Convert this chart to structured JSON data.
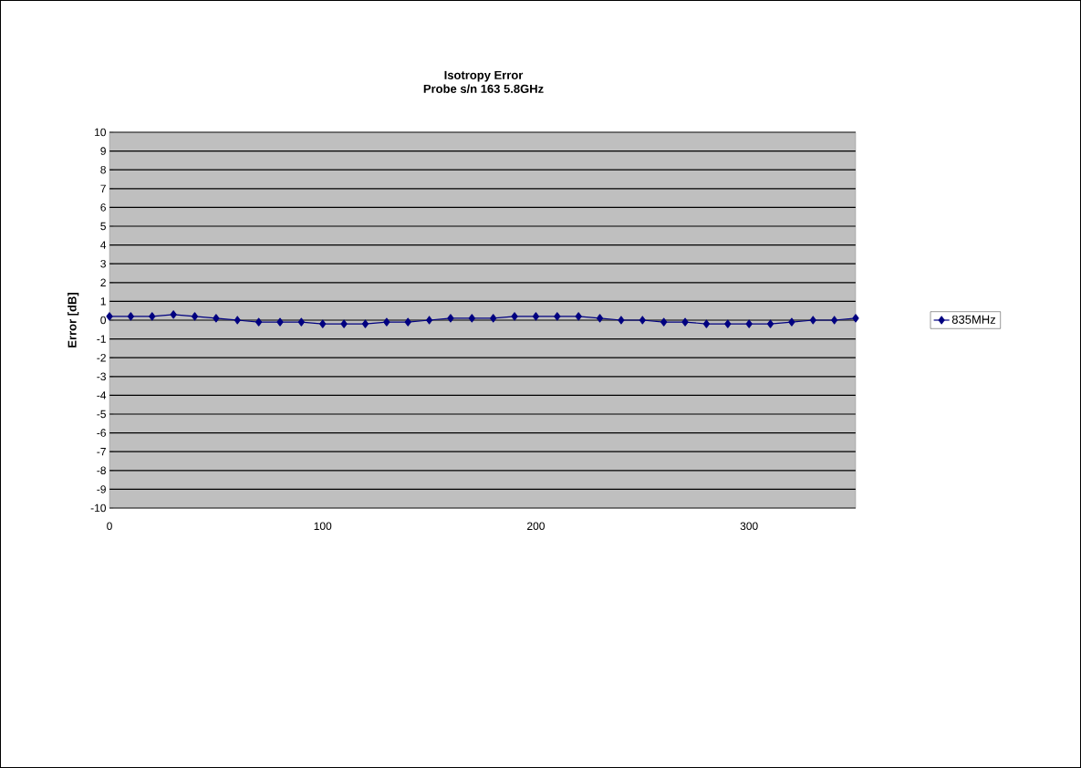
{
  "chart_data": {
    "type": "line",
    "title": "Isotropy Error",
    "subtitle": "Probe s/n 163 5.8GHz",
    "ylabel": "Error [dB]",
    "x": [
      0,
      10,
      20,
      30,
      40,
      50,
      60,
      70,
      80,
      90,
      100,
      110,
      120,
      130,
      140,
      150,
      160,
      170,
      180,
      190,
      200,
      210,
      220,
      230,
      240,
      250,
      260,
      270,
      280,
      290,
      300,
      310,
      320,
      330,
      340,
      350
    ],
    "series": [
      {
        "name": "835MHz",
        "color": "#000080",
        "values": [
          0.2,
          0.2,
          0.2,
          0.3,
          0.2,
          0.1,
          0,
          -0.1,
          -0.1,
          -0.1,
          -0.2,
          -0.2,
          -0.2,
          -0.1,
          -0.1,
          0,
          0.1,
          0.1,
          0.1,
          0.2,
          0.2,
          0.2,
          0.2,
          0.1,
          0,
          0,
          -0.1,
          -0.1,
          -0.2,
          -0.2,
          -0.2,
          -0.2,
          -0.1,
          0,
          0,
          0.1
        ]
      }
    ],
    "xlim": [
      0,
      350
    ],
    "xticks": [
      0,
      100,
      200,
      300
    ],
    "ylim": [
      -10,
      10
    ],
    "yticks": [
      -10,
      -9,
      -8,
      -7,
      -6,
      -5,
      -4,
      -3,
      -2,
      -1,
      0,
      1,
      2,
      3,
      4,
      5,
      6,
      7,
      8,
      9,
      10
    ],
    "grid": "y",
    "legend": "right",
    "marker": "diamond",
    "line_style": "solid"
  }
}
